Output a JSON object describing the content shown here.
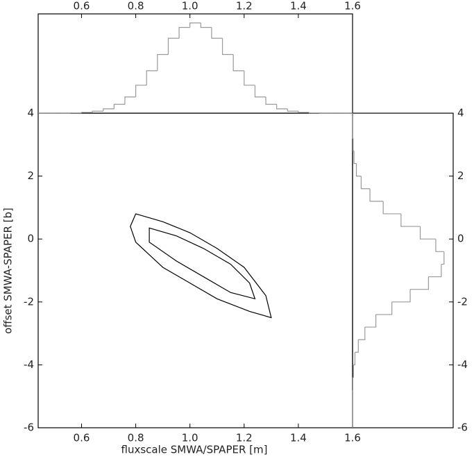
{
  "chart_data": [
    {
      "type": "contour",
      "xlabel": "fluxscale SMWA/SPAPER [m]",
      "ylabel": "offset SMWA-SPAPER [b]",
      "color": "#000000",
      "xlim": [
        0.44,
        1.6
      ],
      "ylim": [
        -6,
        4
      ],
      "xticks": [
        0.6,
        0.8,
        {
          "value": 1,
          "label": "1.0"
        },
        1.2,
        1.4,
        1.6
      ],
      "yticks": [
        -6,
        -4,
        -2,
        0,
        2,
        4
      ],
      "series": [
        {
          "x": [
            0.8,
            0.9,
            1.0,
            1.1,
            1.2,
            1.28,
            1.3,
            1.22,
            1.1,
            1.0,
            0.9,
            0.8,
            0.78
          ],
          "y": [
            0.8,
            0.55,
            0.2,
            -0.3,
            -0.9,
            -1.8,
            -2.5,
            -2.3,
            -1.9,
            -1.4,
            -0.9,
            -0.1,
            0.4
          ]
        },
        {
          "x": [
            0.85,
            0.95,
            1.05,
            1.15,
            1.22,
            1.24,
            1.15,
            1.05,
            0.95,
            0.85
          ],
          "y": [
            0.35,
            0.1,
            -0.3,
            -0.8,
            -1.4,
            -1.9,
            -1.7,
            -1.2,
            -0.7,
            -0.1
          ]
        }
      ]
    },
    {
      "type": "histogram",
      "orientation": "vertical",
      "color": "#999999",
      "xlim": [
        0.44,
        1.6
      ],
      "ylim": [
        0,
        110
      ],
      "xticks": [
        0.6,
        0.8,
        {
          "value": 1,
          "label": "1.0"
        },
        1.2,
        1.4,
        1.6
      ],
      "bins": [
        0.44,
        0.48,
        0.52,
        0.56,
        0.6,
        0.64,
        0.68,
        0.72,
        0.76,
        0.8,
        0.84,
        0.88,
        0.92,
        0.96,
        1.0,
        1.04,
        1.08,
        1.12,
        1.16,
        1.2,
        1.24,
        1.28,
        1.32,
        1.36,
        1.4,
        1.44,
        1.48,
        1.52,
        1.56,
        1.6
      ],
      "counts": [
        0,
        0,
        0.1,
        0.3,
        0.9,
        2.2,
        4.8,
        9.8,
        18,
        31,
        47,
        65,
        83,
        95,
        100,
        95,
        83,
        65,
        47,
        31,
        18,
        9.8,
        4.8,
        2.2,
        0.9,
        0.3,
        0.1,
        0,
        0
      ]
    },
    {
      "type": "histogram",
      "orientation": "horizontal",
      "color": "#999999",
      "ylim": [
        -6,
        4
      ],
      "xlim": [
        0,
        110
      ],
      "yticks": [
        -6,
        -4,
        -2,
        0,
        2,
        4
      ],
      "bins": [
        -6,
        -5.6,
        -5.2,
        -4.8,
        -4.4,
        -4,
        -3.6,
        -3.2,
        -2.8,
        -2.4,
        -2,
        -1.6,
        -1.2,
        -0.8,
        -0.4,
        0,
        0.4,
        0.8,
        1.2,
        1.6,
        2,
        2.4,
        2.8,
        3.2,
        3.6,
        4
      ],
      "counts": [
        0,
        0,
        0.1,
        0.3,
        1,
        2.6,
        6.3,
        13.5,
        25.5,
        43,
        63,
        83,
        97,
        100,
        91,
        74,
        53,
        33.5,
        19,
        9.4,
        4.2,
        1.6,
        0.6,
        0.1,
        0
      ]
    }
  ]
}
